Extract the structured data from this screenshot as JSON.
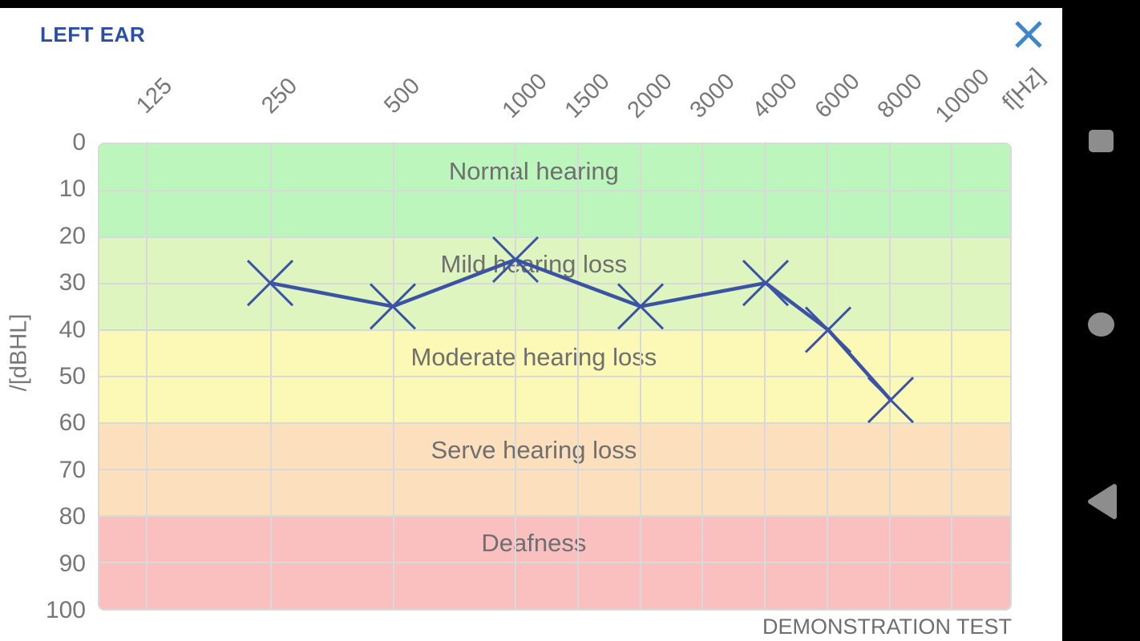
{
  "header": {
    "title": "LEFT EAR"
  },
  "chart_data": {
    "type": "line",
    "title": "",
    "x_axis": {
      "unit_label": "f[Hz]",
      "ticks": [
        125,
        250,
        500,
        1000,
        1500,
        2000,
        3000,
        4000,
        6000,
        8000,
        10000
      ],
      "scale": "log-octave"
    },
    "y_axis": {
      "label": "/[dBHL]",
      "ticks": [
        0,
        10,
        20,
        30,
        40,
        50,
        60,
        70,
        80,
        90,
        100
      ],
      "min": 0,
      "max": 100,
      "inverted": true
    },
    "zones": [
      {
        "label": "Normal hearing",
        "from": 0,
        "to": 20,
        "color": "#bdf6bd"
      },
      {
        "label": "Mild hearing loss",
        "from": 20,
        "to": 40,
        "color": "#dff5bf"
      },
      {
        "label": "Moderate hearing loss",
        "from": 40,
        "to": 60,
        "color": "#fcf8b5"
      },
      {
        "label": "Serve hearing loss",
        "from": 60,
        "to": 80,
        "color": "#fce0bd"
      },
      {
        "label": "Deafness",
        "from": 80,
        "to": 100,
        "color": "#fac0c0"
      }
    ],
    "series": [
      {
        "name": "left-ear-threshold",
        "marker": "x",
        "color": "#3a53a4",
        "points": [
          {
            "f": 250,
            "db": 30
          },
          {
            "f": 500,
            "db": 35
          },
          {
            "f": 1000,
            "db": 25
          },
          {
            "f": 2000,
            "db": 35
          },
          {
            "f": 4000,
            "db": 30
          },
          {
            "f": 6000,
            "db": 40
          },
          {
            "f": 8000,
            "db": 55
          }
        ]
      }
    ],
    "grid": true,
    "footnote": "DEMONSTRATION TEST"
  },
  "colors": {
    "title": "#2b4fa4",
    "close_icon": "#3d86cb",
    "grid": "#d9d9d9",
    "tick_text": "#777777",
    "zone_text": "#6f6f6f",
    "series_line": "#3a53a4",
    "nav_icon": "#8d8d8d",
    "bars": "#000000"
  },
  "android_nav": {
    "buttons": [
      {
        "name": "recents",
        "icon": "square"
      },
      {
        "name": "home",
        "icon": "circle"
      },
      {
        "name": "back",
        "icon": "triangle-left"
      }
    ]
  }
}
